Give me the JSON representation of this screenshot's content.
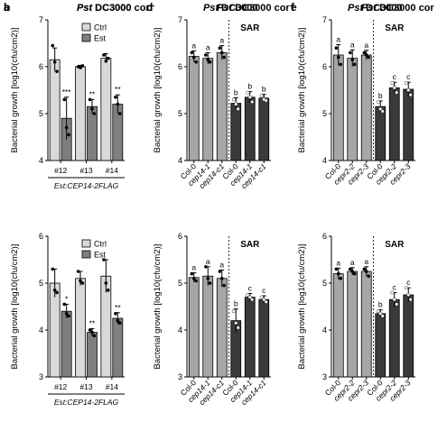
{
  "colors": {
    "ctrl": "#d9d9d9",
    "est": "#7f7f7f",
    "mock": "#a6a6a6",
    "sar": "#3a3a3a",
    "dot": "#000000"
  },
  "chart_data": [
    {
      "panel": "a",
      "type": "bar",
      "title": "Pst DC3000",
      "title_suffix": "",
      "ylabel": "Bacterial growth [log10(cfu/cm2)]",
      "ylim": [
        4,
        7
      ],
      "yticks": [
        4,
        5,
        6,
        7
      ],
      "categories": [
        "#12",
        "#13",
        "#14"
      ],
      "xlabel": "Est:CEP14-2FLAG",
      "legend": [
        "Ctrl",
        "Est"
      ],
      "series": [
        {
          "name": "Ctrl",
          "values": [
            6.15,
            6.0,
            6.18
          ],
          "errors": [
            0.25,
            0.03,
            0.1
          ],
          "points": [
            [
              6.45,
              6.1,
              5.9
            ],
            [
              6.0,
              5.98,
              6.02
            ],
            [
              6.25,
              6.12,
              6.18
            ]
          ]
        },
        {
          "name": "Est",
          "values": [
            4.9,
            5.15,
            5.2
          ],
          "errors": [
            0.45,
            0.15,
            0.2
          ],
          "points": [
            [
              5.3,
              4.7,
              4.55
            ],
            [
              5.3,
              5.1,
              5.0
            ],
            [
              5.35,
              5.2,
              5.0
            ]
          ]
        }
      ],
      "sig": [
        "***",
        "**",
        "**"
      ]
    },
    {
      "panel": "b",
      "type": "bar",
      "title": "Pst DC3000 cor⁻",
      "title_suffix": "",
      "ylabel": "Bacterial growth [log10(cfu/cm2)]",
      "ylim": [
        3,
        6
      ],
      "yticks": [
        3,
        4,
        5,
        6
      ],
      "categories": [
        "#12",
        "#13",
        "#14"
      ],
      "xlabel": "Est:CEP14-2FLAG",
      "legend": [
        "Ctrl",
        "Est"
      ],
      "series": [
        {
          "name": "Ctrl",
          "values": [
            5.0,
            5.1,
            5.15
          ],
          "errors": [
            0.3,
            0.15,
            0.35
          ],
          "points": [
            [
              5.3,
              4.85,
              4.8
            ],
            [
              5.25,
              5.05,
              5.0
            ],
            [
              5.5,
              5.0,
              4.85
            ]
          ]
        },
        {
          "name": "Est",
          "values": [
            4.4,
            3.95,
            4.25
          ],
          "errors": [
            0.15,
            0.08,
            0.12
          ],
          "points": [
            [
              4.55,
              4.35,
              4.3
            ],
            [
              4.0,
              3.95,
              3.88
            ],
            [
              4.35,
              4.2,
              4.15
            ]
          ]
        }
      ],
      "sig": [
        "*",
        "**",
        "**"
      ]
    },
    {
      "panel": "c",
      "type": "bar",
      "title": "Pst DC3000",
      "title_suffix": "",
      "annotation": "SAR",
      "ylabel": "Bacterial growth [log10(cfu/cm2)]",
      "ylim": [
        4,
        7
      ],
      "yticks": [
        4,
        5,
        6,
        7
      ],
      "categories": [
        "Col-0",
        "cep14-1",
        "cep14-c1",
        "Col-0",
        "cep14-1",
        "cep14-c1"
      ],
      "italic": [
        false,
        true,
        true,
        false,
        true,
        true
      ],
      "values": [
        6.22,
        6.18,
        6.3,
        5.22,
        5.35,
        5.33
      ],
      "errors": [
        0.12,
        0.12,
        0.15,
        0.12,
        0.12,
        0.08
      ],
      "letters": [
        "a",
        "a",
        "a",
        "b",
        "b",
        "b"
      ],
      "groups": [
        "mock",
        "mock",
        "mock",
        "sar",
        "sar",
        "sar"
      ],
      "points": [
        [
          6.3,
          6.2,
          6.1
        ],
        [
          6.25,
          6.15,
          6.1
        ],
        [
          6.4,
          6.3,
          6.2
        ],
        [
          5.3,
          5.2,
          5.1
        ],
        [
          5.45,
          5.35,
          5.25
        ],
        [
          5.38,
          5.3,
          5.28
        ]
      ]
    },
    {
      "panel": "d",
      "type": "bar",
      "title": "Pst DC3000 cor⁻",
      "title_suffix": "",
      "annotation": "SAR",
      "ylabel": "Bacterial growth [log10(cfu/cm2)]",
      "ylim": [
        3,
        6
      ],
      "yticks": [
        3,
        4,
        5,
        6
      ],
      "categories": [
        "Col-0",
        "cep14-1",
        "cep14-c1",
        "Col-0",
        "cep14-1",
        "cep14-c1"
      ],
      "italic": [
        false,
        true,
        true,
        false,
        true,
        true
      ],
      "values": [
        5.12,
        5.15,
        5.1,
        4.2,
        4.7,
        4.65
      ],
      "errors": [
        0.1,
        0.2,
        0.18,
        0.25,
        0.08,
        0.08
      ],
      "letters": [
        "a",
        "a",
        "a",
        "b",
        "c",
        "c"
      ],
      "groups": [
        "mock",
        "mock",
        "mock",
        "sar",
        "sar",
        "sar"
      ],
      "points": [
        [
          5.2,
          5.1,
          5.05
        ],
        [
          5.35,
          5.1,
          5.0
        ],
        [
          5.25,
          5.1,
          4.95
        ],
        [
          4.4,
          4.15,
          4.05
        ],
        [
          4.75,
          4.7,
          4.65
        ],
        [
          4.7,
          4.65,
          4.6
        ]
      ]
    },
    {
      "panel": "e",
      "type": "bar",
      "title": "Pst DC3000",
      "title_suffix": "",
      "annotation": "SAR",
      "ylabel": "Bacterial growth [log10(cfu/cm2)]",
      "ylim": [
        4,
        7
      ],
      "yticks": [
        4,
        5,
        6,
        7
      ],
      "categories": [
        "Col-0",
        "cepr2-2",
        "cepr2-3",
        "Col-0",
        "cepr2-2",
        "cepr2-3"
      ],
      "italic": [
        false,
        true,
        true,
        false,
        true,
        true
      ],
      "values": [
        6.25,
        6.18,
        6.25,
        5.15,
        5.55,
        5.52
      ],
      "errors": [
        0.22,
        0.18,
        0.1,
        0.12,
        0.12,
        0.15
      ],
      "letters": [
        "a",
        "a",
        "a",
        "b",
        "c",
        "c"
      ],
      "groups": [
        "mock",
        "mock",
        "mock",
        "sar",
        "sar",
        "sar"
      ],
      "points": [
        [
          6.4,
          6.2,
          6.05
        ],
        [
          6.3,
          6.15,
          6.05
        ],
        [
          6.3,
          6.25,
          6.2
        ],
        [
          5.25,
          5.1,
          5.05
        ],
        [
          5.65,
          5.55,
          5.45
        ],
        [
          5.65,
          5.5,
          5.4
        ]
      ]
    },
    {
      "panel": "f",
      "type": "bar",
      "title": "Pst DC3000 cor",
      "title_suffix": "",
      "annotation": "SAR",
      "ylabel": "Bacterial growth [log10(cfu/cm2)]",
      "ylim": [
        3,
        6
      ],
      "yticks": [
        3,
        4,
        5,
        6
      ],
      "categories": [
        "Col-0",
        "cepr2-2",
        "cepr2-3",
        "Col-0",
        "cepr2-2",
        "cepr2-3"
      ],
      "italic": [
        false,
        true,
        true,
        false,
        true,
        true
      ],
      "values": [
        5.2,
        5.25,
        5.25,
        4.35,
        4.65,
        4.75
      ],
      "errors": [
        0.12,
        0.08,
        0.1,
        0.08,
        0.15,
        0.15
      ],
      "letters": [
        "a",
        "a",
        "a",
        "b",
        "c",
        "c"
      ],
      "groups": [
        "mock",
        "mock",
        "mock",
        "sar",
        "sar",
        "sar"
      ],
      "points": [
        [
          5.3,
          5.2,
          5.1
        ],
        [
          5.3,
          5.25,
          5.2
        ],
        [
          5.3,
          5.25,
          5.15
        ],
        [
          4.4,
          4.35,
          4.3
        ],
        [
          4.8,
          4.65,
          4.55
        ],
        [
          4.9,
          4.75,
          4.65
        ]
      ]
    }
  ]
}
